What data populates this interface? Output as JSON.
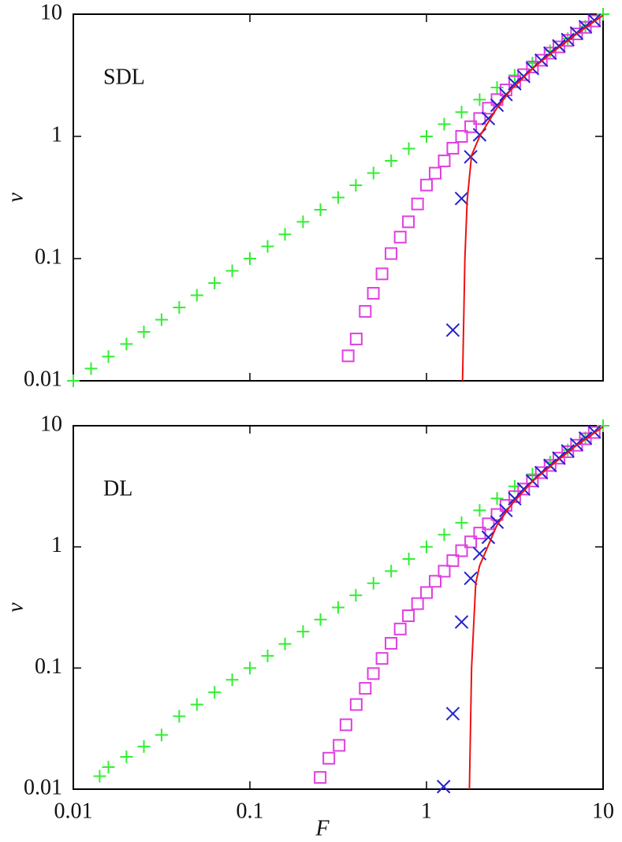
{
  "chart_data": [
    {
      "type": "loglog",
      "label": "SDL",
      "ylabel": "v",
      "xlim": [
        0.01,
        10
      ],
      "ylim": [
        0.01,
        10
      ],
      "xticks": [
        0.01,
        0.1,
        1,
        10
      ],
      "yticks": [
        0.01,
        0.1,
        1,
        10
      ],
      "series": [
        {
          "color": "#33ee33",
          "marker": "plus",
          "x": [
            0.01,
            0.0126,
            0.0158,
            0.02,
            0.0251,
            0.0316,
            0.0398,
            0.0501,
            0.0631,
            0.0794,
            0.1,
            0.126,
            0.158,
            0.2,
            0.251,
            0.316,
            0.398,
            0.501,
            0.631,
            0.794,
            1,
            1.26,
            1.58,
            2,
            2.51,
            3.16,
            3.98,
            5.01,
            6.31,
            7.94,
            10
          ],
          "values": [
            0.01,
            0.0126,
            0.0158,
            0.02,
            0.0251,
            0.0316,
            0.0398,
            0.0501,
            0.0631,
            0.0794,
            0.1,
            0.126,
            0.158,
            0.2,
            0.251,
            0.316,
            0.398,
            0.501,
            0.631,
            0.794,
            1,
            1.26,
            1.58,
            2,
            2.51,
            3.16,
            3.98,
            5.01,
            6.31,
            7.94,
            10
          ]
        },
        {
          "color": "#e040e0",
          "marker": "square",
          "x": [
            0.36,
            0.4,
            0.45,
            0.5,
            0.56,
            0.63,
            0.71,
            0.79,
            0.89,
            1.0,
            1.12,
            1.26,
            1.41,
            1.58,
            1.78,
            2.0,
            2.24,
            2.51,
            2.82,
            3.16,
            3.55,
            3.98,
            4.47,
            5.01,
            5.62,
            6.31,
            7.08,
            7.94,
            8.91
          ],
          "values": [
            0.016,
            0.022,
            0.037,
            0.052,
            0.075,
            0.11,
            0.15,
            0.2,
            0.28,
            0.4,
            0.5,
            0.63,
            0.8,
            1.0,
            1.2,
            1.4,
            1.7,
            2.0,
            2.4,
            2.8,
            3.2,
            3.7,
            4.2,
            4.8,
            5.4,
            6.1,
            6.9,
            7.8,
            8.8
          ]
        },
        {
          "color": "#2222cc",
          "marker": "cross",
          "x": [
            1.41,
            1.58,
            1.78,
            2.0,
            2.24,
            2.51,
            2.82,
            3.16,
            3.55,
            3.98,
            4.47,
            5.01,
            5.62,
            6.31,
            7.08,
            7.94,
            8.91
          ],
          "values": [
            0.026,
            0.31,
            0.68,
            1.03,
            1.4,
            1.8,
            2.2,
            2.7,
            3.1,
            3.6,
            4.2,
            4.8,
            5.5,
            6.2,
            7.0,
            7.9,
            8.9
          ]
        },
        {
          "color": "#ee1111",
          "marker": "line",
          "x": [
            1.6,
            1.65,
            1.7,
            1.8,
            2.0,
            2.5,
            3,
            4,
            5,
            7,
            10
          ],
          "values": [
            0.01,
            0.1,
            0.3,
            0.7,
            1.0,
            1.7,
            2.4,
            3.6,
            4.7,
            6.8,
            9.8
          ]
        }
      ]
    },
    {
      "type": "loglog",
      "label": "DL",
      "ylabel": "v",
      "xlabel": "F",
      "xlim": [
        0.01,
        10
      ],
      "ylim": [
        0.01,
        10
      ],
      "xticks": [
        0.01,
        0.1,
        1,
        10
      ],
      "yticks": [
        0.01,
        0.1,
        1,
        10
      ],
      "series": [
        {
          "color": "#33ee33",
          "marker": "plus",
          "x": [
            0.0141,
            0.0158,
            0.02,
            0.0251,
            0.0316,
            0.0398,
            0.0501,
            0.0631,
            0.0794,
            0.1,
            0.126,
            0.158,
            0.2,
            0.251,
            0.316,
            0.398,
            0.501,
            0.631,
            0.794,
            1,
            1.26,
            1.58,
            2,
            2.51,
            3.16,
            3.98,
            5.01,
            6.31,
            7.94,
            10
          ],
          "values": [
            0.0128,
            0.0152,
            0.0185,
            0.0225,
            0.028,
            0.04,
            0.05,
            0.063,
            0.08,
            0.1,
            0.126,
            0.158,
            0.2,
            0.251,
            0.316,
            0.398,
            0.501,
            0.631,
            0.794,
            1,
            1.26,
            1.58,
            2,
            2.51,
            3.16,
            3.98,
            5.01,
            6.31,
            7.94,
            10
          ]
        },
        {
          "color": "#e040e0",
          "marker": "square",
          "x": [
            0.25,
            0.28,
            0.32,
            0.35,
            0.4,
            0.45,
            0.5,
            0.56,
            0.63,
            0.71,
            0.79,
            0.89,
            1.0,
            1.12,
            1.26,
            1.41,
            1.58,
            1.78,
            2.0,
            2.24,
            2.51,
            2.82,
            3.16,
            3.55,
            3.98,
            4.47,
            5.01,
            5.62,
            6.31,
            7.08,
            7.94,
            8.91
          ],
          "values": [
            0.0125,
            0.018,
            0.023,
            0.034,
            0.05,
            0.068,
            0.09,
            0.12,
            0.16,
            0.21,
            0.27,
            0.34,
            0.42,
            0.52,
            0.63,
            0.77,
            0.93,
            1.1,
            1.3,
            1.55,
            1.85,
            2.2,
            2.6,
            3.0,
            3.5,
            4.1,
            4.7,
            5.4,
            6.1,
            6.9,
            7.8,
            8.8
          ]
        },
        {
          "color": "#2222cc",
          "marker": "cross",
          "x": [
            1.25,
            1.41,
            1.58,
            1.78,
            2.0,
            2.24,
            2.51,
            2.82,
            3.16,
            3.55,
            3.98,
            4.47,
            5.01,
            5.62,
            6.31,
            7.08,
            7.94,
            8.91
          ],
          "values": [
            0.0105,
            0.042,
            0.24,
            0.55,
            0.88,
            1.2,
            1.6,
            2.0,
            2.5,
            3.0,
            3.5,
            4.1,
            4.7,
            5.4,
            6.2,
            7.0,
            7.9,
            8.9
          ]
        },
        {
          "color": "#ee1111",
          "marker": "line",
          "x": [
            1.75,
            1.8,
            1.9,
            2.0,
            2.5,
            3,
            4,
            5,
            7,
            10
          ],
          "values": [
            0.01,
            0.1,
            0.5,
            0.7,
            1.5,
            2.2,
            3.5,
            4.6,
            6.8,
            9.8
          ]
        }
      ]
    }
  ]
}
